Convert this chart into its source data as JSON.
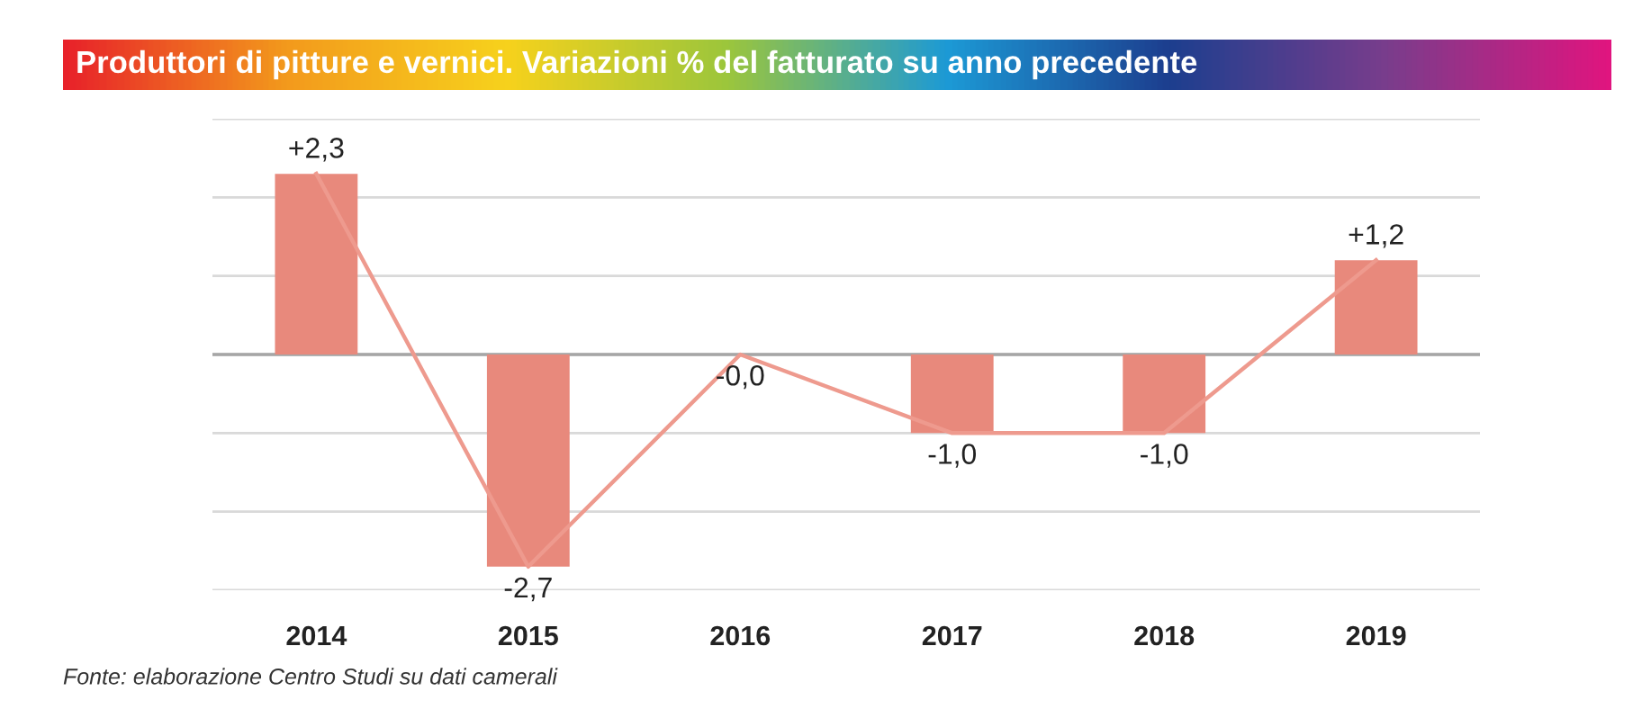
{
  "chart_data": {
    "type": "bar",
    "title": "Produttori di pitture e vernici. Variazioni % del fatturato su anno precedente",
    "categories": [
      "2014",
      "2015",
      "2016",
      "2017",
      "2018",
      "2019"
    ],
    "series": [
      {
        "color": "#e8897c",
        "values": [
          2.3,
          -2.7,
          0,
          -1.0,
          -1.0,
          1.2
        ],
        "value_labels": [
          "+2,3",
          "-2,7",
          "-0,0",
          "-1,0",
          "-1,0",
          "+1,2"
        ]
      },
      {
        "type": "line",
        "color": "#ee9a8e",
        "values": [
          2.3,
          -2.7,
          0,
          -1.0,
          -1.0,
          1.2
        ]
      }
    ],
    "ylim": [
      -3,
      3
    ],
    "yticks": [
      {
        "value": -3,
        "label": null
      },
      {
        "value": -2,
        "label": null
      },
      {
        "value": -1,
        "label": null
      },
      {
        "value": 0,
        "label": null
      },
      {
        "value": 1,
        "label": null
      },
      {
        "value": 2,
        "label": null
      },
      {
        "value": 3,
        "label": null
      }
    ],
    "tick_labels": "x",
    "grid": "y",
    "legend": false,
    "marker": "none",
    "line_style": "solid",
    "annotations": [
      "Fonte: elaborazione Centro Studi su dati camerali"
    ]
  }
}
